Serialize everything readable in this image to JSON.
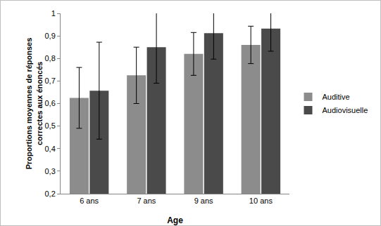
{
  "chart_data": {
    "type": "bar",
    "x_label": "Age",
    "y_label": "Proportions moyennes de réponses\ncorrectes aux énoncés",
    "categories": [
      "6 ans",
      "7 ans",
      "9 ans",
      "10 ans"
    ],
    "series": [
      {
        "name": "Auditive",
        "color": "#8c8c8c",
        "values": [
          0.625,
          0.725,
          0.82,
          0.86
        ],
        "errors": [
          0.135,
          0.125,
          0.095,
          0.083
        ]
      },
      {
        "name": "Audiovisuelle",
        "color": "#4a4a4a",
        "values": [
          0.657,
          0.85,
          0.912,
          0.932
        ],
        "errors": [
          0.215,
          0.16,
          0.115,
          0.1
        ]
      }
    ],
    "ylim": [
      0.2,
      1
    ],
    "yticks": [
      {
        "value": 0.2,
        "label": "0,2"
      },
      {
        "value": 0.3,
        "label": "0,3"
      },
      {
        "value": 0.4,
        "label": "0,4"
      },
      {
        "value": 0.5,
        "label": "0,5"
      },
      {
        "value": 0.6,
        "label": "0,6"
      },
      {
        "value": 0.7,
        "label": "0,7"
      },
      {
        "value": 0.8,
        "label": "0,8"
      },
      {
        "value": 0.9,
        "label": "0,9"
      },
      1
    ],
    "grid": false,
    "legend": "right"
  }
}
